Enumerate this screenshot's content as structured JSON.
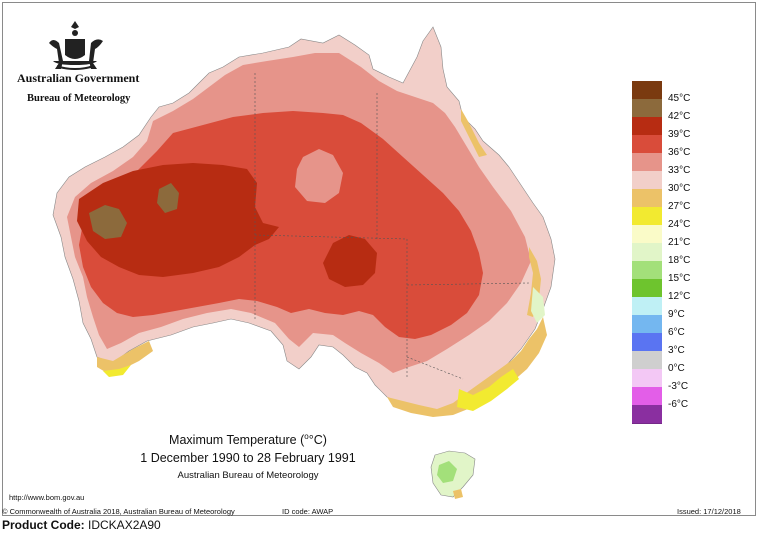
{
  "header": {
    "organisation": "Australian Government",
    "agency": "Bureau of Meteorology",
    "logo_icon": "coat-of-arms-icon"
  },
  "title": {
    "line1_prefix": "Maximum Temperature (",
    "line1_unit": "°C)",
    "line1_sup": "o",
    "line2": "1 December 1990 to 28 February 1991",
    "line3": "Australian Bureau of Meteorology"
  },
  "legend": {
    "items": [
      {
        "label": "45°C",
        "color": "#7a3a10"
      },
      {
        "label": "42°C",
        "color": "#8c6a3c"
      },
      {
        "label": "39°C",
        "color": "#b72c12"
      },
      {
        "label": "36°C",
        "color": "#d94c3a"
      },
      {
        "label": "33°C",
        "color": "#e6948a"
      },
      {
        "label": "30°C",
        "color": "#f2cfc9"
      },
      {
        "label": "27°C",
        "color": "#ecc268"
      },
      {
        "label": "24°C",
        "color": "#f2ea30"
      },
      {
        "label": "21°C",
        "color": "#fafbc8"
      },
      {
        "label": "18°C",
        "color": "#e1f5c8"
      },
      {
        "label": "15°C",
        "color": "#a3e07a"
      },
      {
        "label": "12°C",
        "color": "#6ec42e"
      },
      {
        "label": "9°C",
        "color": "#bff0f5"
      },
      {
        "label": "6°C",
        "color": "#74b7f0"
      },
      {
        "label": "3°C",
        "color": "#5a74f2"
      },
      {
        "label": "0°C",
        "color": "#cfcfcf"
      },
      {
        "label": "-3°C",
        "color": "#f3c8f5"
      },
      {
        "label": "-6°C",
        "color": "#e35ee8"
      },
      {
        "label": "",
        "color": "#8a2fa0"
      }
    ]
  },
  "footer": {
    "url": "http://www.bom.gov.au",
    "copyright": "© Commonwealth of Australia 2018, Australian Bureau of Meteorology",
    "id_code": "ID code: AWAP",
    "issued": "Issued: 17/12/2018",
    "product_code_label": "Product Code:",
    "product_code_value": "IDCKAX2A90"
  }
}
